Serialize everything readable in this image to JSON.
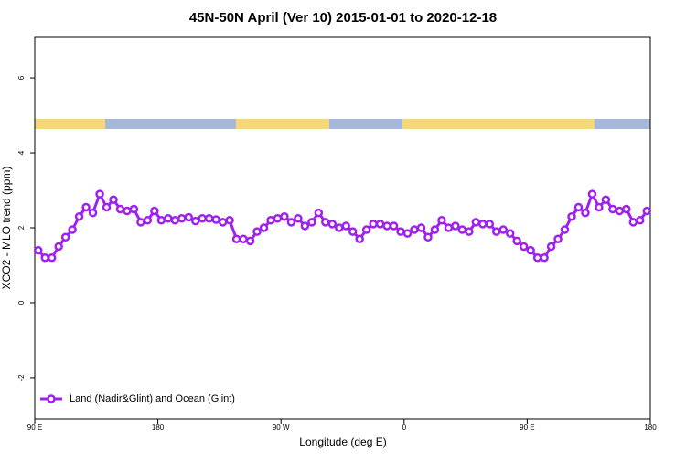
{
  "chart_data": {
    "type": "line",
    "title": "45N-50N April (Ver 10)   2015-01-01 to 2020-12-18",
    "xlabel": "Longitude (deg E)",
    "ylabel": "XCO2 - MLO trend (ppm)",
    "xlim": [
      90,
      540
    ],
    "xticks": [
      {
        "value": 90,
        "label": "90 E"
      },
      180,
      {
        "value": 270,
        "label": "90 W"
      },
      {
        "value": 360,
        "label": "0"
      },
      {
        "value": 450,
        "label": "90 E"
      },
      {
        "value": 540,
        "label": "180"
      }
    ],
    "ylim": [
      -3.1,
      7.1
    ],
    "yticks": [
      -2,
      0,
      2,
      4,
      6
    ],
    "grid": false,
    "legend": "bottom left",
    "x": [
      92.5,
      97.5,
      102.5,
      107.5,
      112.5,
      117.5,
      122.5,
      127.5,
      132.5,
      137.5,
      142.5,
      147.5,
      152.5,
      157.5,
      162.5,
      167.5,
      172.5,
      177.5,
      182.5,
      187.5,
      192.5,
      197.5,
      202.5,
      207.5,
      212.5,
      217.5,
      222.5,
      227.5,
      232.5,
      237.5,
      242.5,
      247.5,
      252.5,
      257.5,
      262.5,
      267.5,
      272.5,
      277.5,
      282.5,
      287.5,
      292.5,
      297.5,
      302.5,
      307.5,
      312.5,
      317.5,
      322.5,
      327.5,
      332.5,
      337.5,
      342.5,
      347.5,
      352.5,
      357.5,
      362.5,
      367.5,
      372.5,
      377.5,
      382.5,
      387.5,
      392.5,
      397.5,
      402.5,
      407.5,
      412.5,
      417.5,
      422.5,
      427.5,
      432.5,
      437.5,
      442.5,
      447.5,
      452.5,
      457.5,
      462.5,
      467.5,
      472.5,
      477.5,
      482.5,
      487.5,
      492.5,
      497.5,
      502.5,
      507.5,
      512.5,
      517.5,
      522.5,
      527.5,
      532.5,
      537.5
    ],
    "series": [
      {
        "name": "Land (Nadir&Glint) and Ocean (Glint)",
        "color": "#a020f0",
        "values": [
          1.4,
          1.2,
          1.2,
          1.5,
          1.75,
          1.95,
          2.3,
          2.55,
          2.4,
          2.9,
          2.55,
          2.75,
          2.5,
          2.45,
          2.5,
          2.15,
          2.2,
          2.45,
          2.2,
          2.25,
          2.2,
          2.25,
          2.28,
          2.18,
          2.25,
          2.25,
          2.22,
          2.15,
          2.2,
          1.7,
          1.7,
          1.65,
          1.9,
          2.0,
          2.2,
          2.25,
          2.3,
          2.15,
          2.25,
          2.05,
          2.15,
          2.4,
          2.15,
          2.1,
          2.0,
          2.05,
          1.9,
          1.7,
          1.95,
          2.1,
          2.1,
          2.05,
          2.05,
          1.9,
          1.85,
          1.95,
          2.0,
          1.75,
          1.95,
          2.2,
          2.0,
          2.05,
          1.95,
          1.9,
          2.15,
          2.1,
          2.1,
          1.9,
          1.95,
          1.85,
          1.65,
          1.5,
          1.4,
          1.2,
          1.2,
          1.5,
          1.7,
          1.95,
          2.3,
          2.55,
          2.4,
          2.9,
          2.55,
          2.75,
          2.5,
          2.45,
          2.5,
          2.15,
          2.2,
          2.45
        ]
      }
    ]
  }
}
